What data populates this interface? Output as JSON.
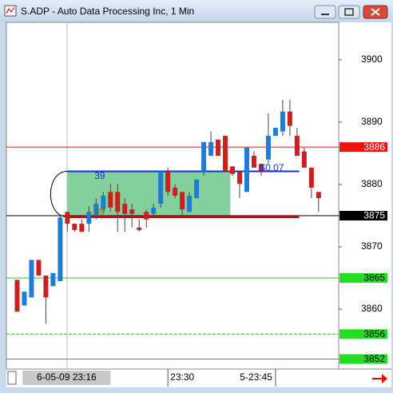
{
  "chart_data": {
    "type": "candlestick",
    "title": "S.ADP - Auto Data Processing Inc, 1 Min",
    "up_color": "#1f7bd6",
    "down_color": "#cc2020",
    "x": [
      0,
      1,
      2,
      3,
      4,
      5,
      6,
      7,
      8,
      9,
      10,
      11,
      12,
      13,
      14,
      15,
      16,
      17,
      18,
      19,
      20,
      21,
      22,
      23,
      24,
      25,
      26,
      27,
      28,
      29,
      30,
      31,
      32,
      33,
      34,
      35,
      36,
      37,
      38,
      39,
      40,
      41,
      42
    ],
    "open": [
      3864.7,
      3860.6,
      3861.9,
      3867.9,
      3865.4,
      3863.7,
      3864.5,
      3875.6,
      3873.7,
      3873.7,
      3873.7,
      3875.0,
      3876.0,
      3878.8,
      3878.8,
      3876.9,
      3876.0,
      3873.1,
      3875.6,
      3875.3,
      3876.9,
      3882.1,
      3879.5,
      3878.8,
      3875.6,
      3877.8,
      3882.1,
      3884.6,
      3887.2,
      3887.8,
      3882.9,
      3882.1,
      3878.8,
      3884.6,
      3883.3,
      3884.0,
      3887.8,
      3888.5,
      3891.7,
      3887.8,
      3885.3,
      3882.7,
      3878.8
    ],
    "high": [
      3864.7,
      3862.8,
      3867.9,
      3867.9,
      3865.4,
      3865.8,
      3875.0,
      3875.6,
      3873.7,
      3874.4,
      3876.5,
      3877.8,
      3878.8,
      3880.1,
      3880.1,
      3877.8,
      3876.9,
      3874.4,
      3876.0,
      3876.9,
      3882.1,
      3882.7,
      3880.1,
      3878.8,
      3878.8,
      3880.8,
      3886.8,
      3888.5,
      3887.2,
      3887.8,
      3882.9,
      3882.1,
      3885.9,
      3885.3,
      3883.3,
      3891.4,
      3889.1,
      3893.6,
      3893.6,
      3889.1,
      3885.9,
      3882.7,
      3878.8
    ],
    "low": [
      3859.6,
      3860.6,
      3861.9,
      3865.4,
      3857.7,
      3863.7,
      3864.5,
      3872.4,
      3872.4,
      3872.4,
      3872.4,
      3874.4,
      3875.6,
      3875.6,
      3872.4,
      3872.4,
      3873.1,
      3872.4,
      3873.1,
      3875.0,
      3876.3,
      3878.2,
      3877.8,
      3875.0,
      3875.6,
      3877.8,
      3881.4,
      3884.6,
      3884.6,
      3882.1,
      3881.4,
      3877.8,
      3878.8,
      3882.7,
      3881.4,
      3883.3,
      3887.8,
      3887.8,
      3887.8,
      3884.6,
      3882.7,
      3877.8,
      3875.6
    ],
    "close": [
      3859.6,
      3862.8,
      3867.9,
      3865.4,
      3861.9,
      3865.8,
      3874.7,
      3873.7,
      3872.7,
      3872.4,
      3875.6,
      3876.9,
      3878.2,
      3876.3,
      3875.6,
      3875.3,
      3875.3,
      3872.7,
      3874.4,
      3876.3,
      3882.1,
      3878.8,
      3878.2,
      3876.0,
      3878.2,
      3880.8,
      3886.8,
      3886.8,
      3884.6,
      3882.1,
      3881.7,
      3880.1,
      3885.9,
      3882.7,
      3882.1,
      3887.8,
      3889.1,
      3891.7,
      3889.4,
      3884.6,
      3882.7,
      3879.5,
      3877.8
    ],
    "xlim": [
      -1.5,
      44.8
    ],
    "xticks": [
      {
        "value": 7,
        "label": "6-05-09 23:16"
      },
      {
        "value": 21,
        "label": "23:30"
      },
      {
        "value": 36,
        "label": "5-23:45"
      }
    ],
    "ylim": [
      3850.4,
      3906
    ],
    "yticks": [
      3860,
      3870,
      3880,
      3890,
      3900
    ],
    "levels": [
      {
        "value": 3886,
        "color": "#cc2020",
        "badge_color": "#ee1111",
        "text_color": "#ffffff",
        "dashed": false
      },
      {
        "value": 3875,
        "color": "#000000",
        "badge_color": "#000000",
        "text_color": "#ffffff",
        "dashed": false
      },
      {
        "value": 3865,
        "color": "#22cc22",
        "badge_color": "#22dd22",
        "text_color": "#000000",
        "dashed": false
      },
      {
        "value": 3856,
        "color": "#22bb22",
        "badge_color": "#22dd22",
        "text_color": "#000000",
        "dashed": true
      },
      {
        "value": 3852,
        "color": "#22bb22",
        "badge_color": "#22dd22",
        "text_color": "#000000",
        "dashed": false
      }
    ],
    "zone": {
      "x": [
        7,
        29.7
      ],
      "top": 3882.1,
      "bottom": 3874.8,
      "fill": "#5cc27c",
      "top_color": "#1030d0",
      "bottom_color": "#a01818",
      "line_end": 39.3
    },
    "annotations": [
      {
        "text": "39",
        "x": 11.5,
        "y": 3881.3,
        "color": "#1030d0"
      },
      {
        "text": "39",
        "x": 11.5,
        "y": 3875.6,
        "color": "#8a6a20"
      },
      {
        "text": "$0.07",
        "x": 35.5,
        "y": 3882.6,
        "color": "#1030d0"
      }
    ]
  }
}
